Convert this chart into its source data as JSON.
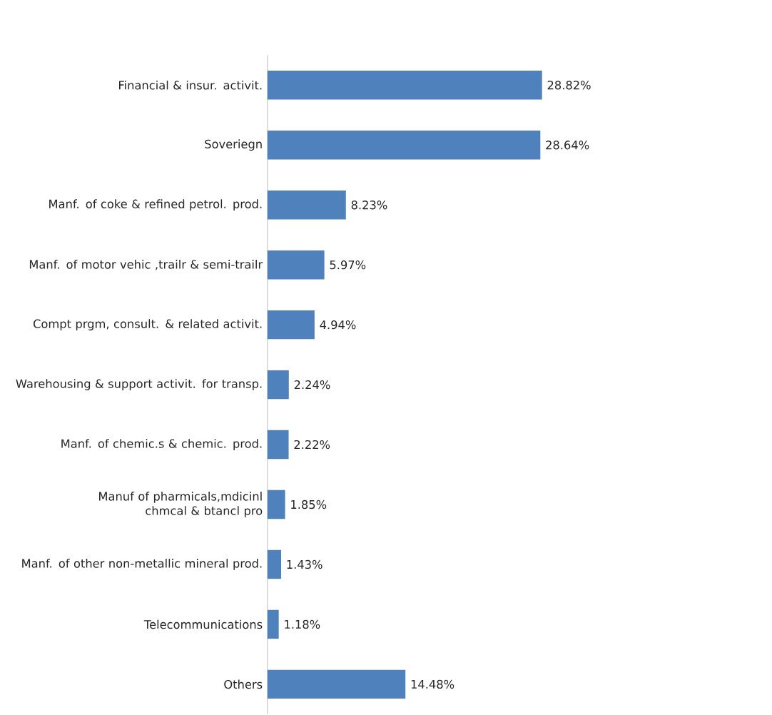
{
  "chart_data": {
    "type": "bar",
    "orientation": "horizontal",
    "categories": [
      "Financial & insur. activit.",
      "Soveriegn",
      "Manf. of coke & refined petrol. prod.",
      "Manf. of motor vehic ,trailr & semi-trailr",
      "Compt prgm, consult. & related activit.",
      "Warehousing & support activit. for transp.",
      "Manf. of chemic.s & chemic. prod.",
      "Manuf of pharmicals,mdicinl chmcal & btancl pro",
      "Manf. of other non-metallic mineral prod.",
      "Telecommunications",
      "Others"
    ],
    "values": [
      28.82,
      28.64,
      8.23,
      5.97,
      4.94,
      2.24,
      2.22,
      1.85,
      1.43,
      1.18,
      14.48
    ],
    "value_labels": [
      "28.82%",
      "28.64%",
      "8.23%",
      "5.97%",
      "4.94%",
      "2.24%",
      "2.22%",
      "1.85%",
      "1.43%",
      "1.18%",
      "14.48%"
    ],
    "color": "#4f81bd"
  }
}
